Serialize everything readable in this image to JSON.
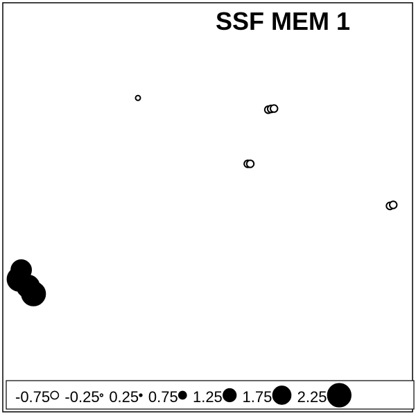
{
  "chart_data": {
    "type": "scatter",
    "title": "SSF MEM 1",
    "xlabel": "",
    "ylabel": "",
    "grid": false,
    "legend_position": "bottom",
    "legend": {
      "values": [
        -0.75,
        -0.25,
        0.25,
        0.75,
        1.25,
        1.75,
        2.25
      ],
      "labels": [
        "-0.75",
        "-0.25",
        "0.25",
        "0.75",
        "1.25",
        "1.75",
        "2.25"
      ]
    },
    "points": [
      {
        "x": 0.33,
        "y": 0.74,
        "value": -0.4
      },
      {
        "x": 0.648,
        "y": 0.708,
        "value": -0.6
      },
      {
        "x": 0.655,
        "y": 0.71,
        "value": -0.6
      },
      {
        "x": 0.662,
        "y": 0.711,
        "value": -0.6
      },
      {
        "x": 0.598,
        "y": 0.56,
        "value": -0.6
      },
      {
        "x": 0.604,
        "y": 0.56,
        "value": -0.6
      },
      {
        "x": 0.945,
        "y": 0.445,
        "value": -0.6
      },
      {
        "x": 0.953,
        "y": 0.448,
        "value": -0.6
      },
      {
        "x": 0.045,
        "y": 0.27,
        "value": 1.65
      },
      {
        "x": 0.04,
        "y": 0.245,
        "value": 1.95
      },
      {
        "x": 0.062,
        "y": 0.225,
        "value": 1.85
      },
      {
        "x": 0.075,
        "y": 0.205,
        "value": 1.95
      }
    ]
  }
}
